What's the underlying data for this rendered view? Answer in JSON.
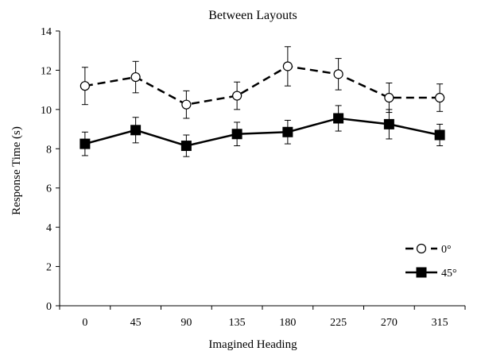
{
  "chart_data": {
    "type": "line",
    "title": "Between Layouts",
    "xlabel": "Imagined Heading",
    "ylabel": "Response Time (s)",
    "categories": [
      "0",
      "45",
      "90",
      "135",
      "180",
      "225",
      "270",
      "315"
    ],
    "ylim": [
      0,
      14
    ],
    "yticks": [
      0,
      2,
      4,
      6,
      8,
      10,
      12,
      14
    ],
    "grid": false,
    "legend_position": "bottom-right",
    "series": [
      {
        "name": "0°",
        "line_style": "dashed",
        "marker": "open-circle",
        "color": "#000000",
        "values": [
          11.2,
          11.65,
          10.25,
          10.7,
          12.2,
          11.8,
          10.6,
          10.6
        ],
        "error": [
          0.95,
          0.8,
          0.7,
          0.7,
          1.0,
          0.8,
          0.75,
          0.7
        ]
      },
      {
        "name": "45°",
        "line_style": "solid",
        "marker": "filled-square",
        "color": "#000000",
        "values": [
          8.25,
          8.95,
          8.15,
          8.75,
          8.85,
          9.55,
          9.25,
          8.7
        ],
        "error": [
          0.6,
          0.65,
          0.55,
          0.6,
          0.6,
          0.65,
          0.75,
          0.55
        ]
      }
    ]
  }
}
